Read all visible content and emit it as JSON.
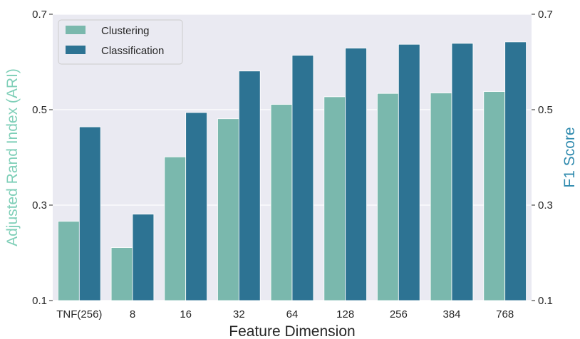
{
  "chart_data": {
    "type": "bar",
    "categories": [
      "TNF(256)",
      "8",
      "16",
      "32",
      "64",
      "128",
      "256",
      "384",
      "768"
    ],
    "series": [
      {
        "name": "Clustering",
        "axis": "left",
        "color": "#7ab8ad",
        "values": [
          0.266,
          0.211,
          0.401,
          0.481,
          0.511,
          0.527,
          0.534,
          0.535,
          0.538
        ]
      },
      {
        "name": "Classification",
        "axis": "right",
        "color": "#2d7393",
        "values": [
          0.464,
          0.281,
          0.494,
          0.581,
          0.614,
          0.629,
          0.637,
          0.639,
          0.642
        ]
      }
    ],
    "xlabel": "Feature Dimension",
    "ylabel_left": "Adjusted Rand Index (ARI)",
    "ylabel_right": "F1 Score",
    "ylabel_left_color": "#7fcfb8",
    "ylabel_right_color": "#2f8aae",
    "ylim": [
      0.1,
      0.7
    ],
    "yticks": [
      "0.1",
      "0.3",
      "0.5",
      "0.7"
    ],
    "ytick_values": [
      0.1,
      0.3,
      0.5,
      0.7
    ],
    "grid": true,
    "background": "#eaeaf2",
    "legend_position": "top-left"
  }
}
